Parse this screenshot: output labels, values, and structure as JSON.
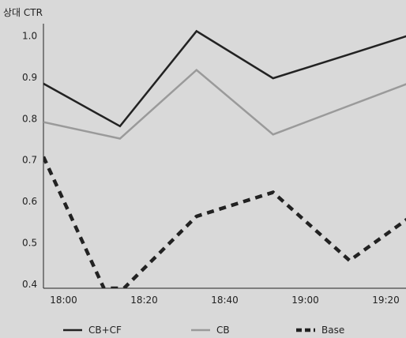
{
  "chart_data": {
    "type": "line",
    "ylabel": "상대 CTR",
    "xlabel": "",
    "title": "",
    "x_ticks": [
      "18:00",
      "18:20",
      "18:40",
      "19:00",
      "19:20"
    ],
    "y_ticks": [
      "0.4",
      "0.5",
      "0.6",
      "0.7",
      "0.8",
      "0.9",
      "1.0"
    ],
    "x_range": [
      "17:55",
      "19:25"
    ],
    "ylim": [
      0.39,
      1.03
    ],
    "grid": false,
    "legend_position": "bottom",
    "series": [
      {
        "name": "CB+CF",
        "color": "#222222",
        "style": "solid",
        "points": [
          [
            "17:55",
            0.885
          ],
          [
            "18:14",
            0.782
          ],
          [
            "18:33",
            1.012
          ],
          [
            "18:52",
            0.898
          ],
          [
            "19:11",
            0.956
          ],
          [
            "19:30",
            1.015
          ]
        ]
      },
      {
        "name": "CB",
        "color": "#9a9a9a",
        "style": "solid",
        "points": [
          [
            "17:55",
            0.792
          ],
          [
            "18:14",
            0.752
          ],
          [
            "18:33",
            0.918
          ],
          [
            "18:52",
            0.762
          ],
          [
            "19:11",
            0.832
          ],
          [
            "19:30",
            0.902
          ]
        ]
      },
      {
        "name": "Base",
        "color": "#222222",
        "style": "dashed",
        "points": [
          [
            "17:55",
            0.708
          ],
          [
            "18:10",
            0.39
          ],
          [
            "18:15",
            0.39
          ],
          [
            "18:33",
            0.564
          ],
          [
            "18:52",
            0.622
          ],
          [
            "19:11",
            0.457
          ],
          [
            "19:30",
            0.59
          ]
        ]
      }
    ]
  }
}
